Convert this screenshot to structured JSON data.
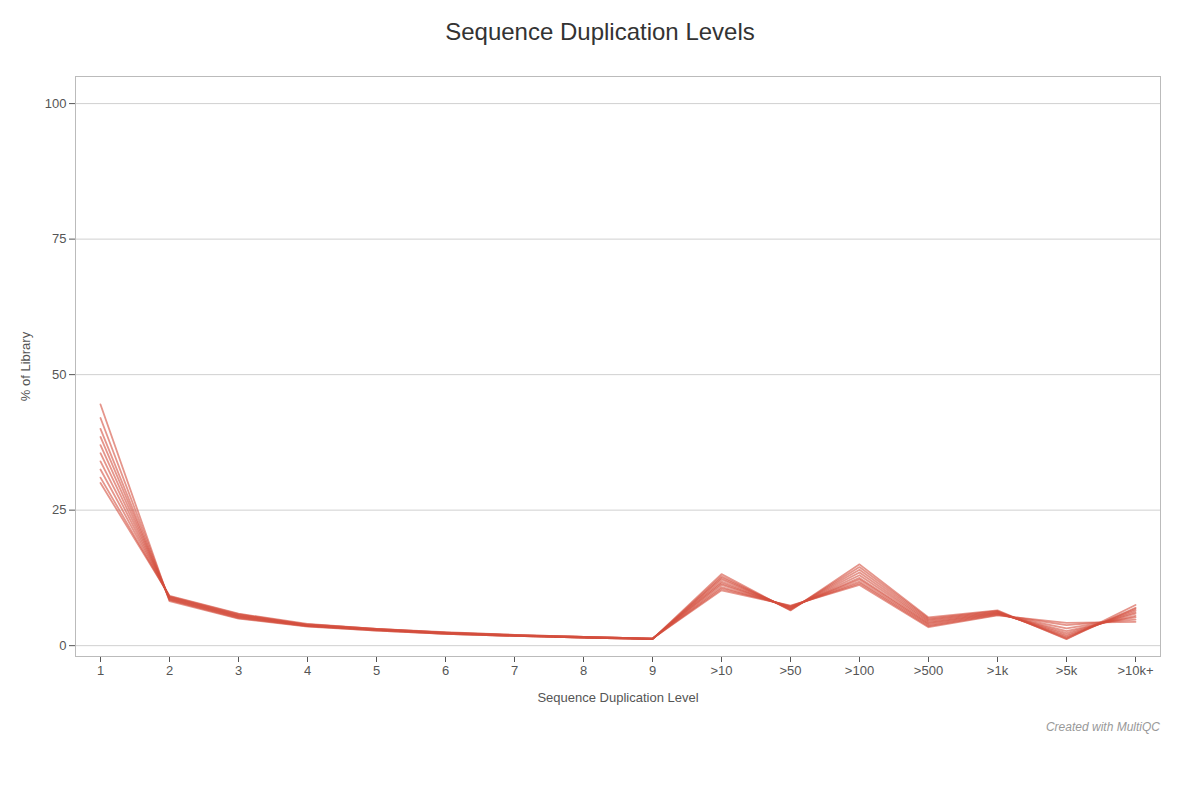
{
  "chart_data": {
    "type": "line",
    "title": "Sequence Duplication Levels",
    "xlabel": "Sequence Duplication Level",
    "ylabel": "% of Library",
    "categories": [
      "1",
      "2",
      "3",
      "4",
      "5",
      "6",
      "7",
      "8",
      "9",
      ">10",
      ">50",
      ">100",
      ">500",
      ">1k",
      ">5k",
      ">10k+"
    ],
    "series": [
      {
        "values": [
          44.5,
          8.2,
          5.0,
          3.5,
          2.8,
          2.2,
          1.8,
          1.5,
          1.2,
          13.2,
          6.5,
          15.0,
          5.2,
          6.5,
          1.2,
          7.5
        ]
      },
      {
        "values": [
          42.0,
          8.4,
          5.1,
          3.6,
          2.8,
          2.2,
          1.8,
          1.5,
          1.2,
          12.8,
          6.6,
          14.5,
          5.0,
          6.4,
          1.3,
          7.0
        ]
      },
      {
        "values": [
          40.0,
          8.5,
          5.2,
          3.6,
          2.9,
          2.2,
          1.8,
          1.5,
          1.2,
          12.5,
          6.7,
          14.0,
          4.8,
          6.3,
          1.5,
          6.8
        ]
      },
      {
        "values": [
          38.5,
          8.6,
          5.3,
          3.7,
          2.9,
          2.3,
          1.8,
          1.5,
          1.2,
          12.2,
          6.8,
          13.5,
          4.6,
          6.2,
          1.7,
          6.5
        ]
      },
      {
        "values": [
          37.0,
          8.7,
          5.4,
          3.7,
          2.9,
          2.3,
          1.9,
          1.5,
          1.3,
          11.8,
          6.9,
          13.0,
          4.4,
          6.1,
          2.0,
          6.2
        ]
      },
      {
        "values": [
          35.5,
          8.8,
          5.5,
          3.8,
          3.0,
          2.3,
          1.9,
          1.6,
          1.3,
          11.5,
          7.0,
          12.5,
          4.2,
          6.0,
          2.3,
          5.9
        ]
      },
      {
        "values": [
          34.0,
          8.9,
          5.6,
          3.8,
          3.0,
          2.4,
          1.9,
          1.6,
          1.3,
          11.2,
          7.1,
          12.2,
          4.0,
          5.9,
          2.7,
          5.5
        ]
      },
      {
        "values": [
          32.5,
          9.0,
          5.7,
          3.9,
          3.1,
          2.4,
          1.9,
          1.6,
          1.3,
          10.8,
          7.2,
          11.8,
          3.8,
          5.8,
          3.2,
          5.2
        ]
      },
      {
        "values": [
          31.0,
          9.1,
          5.8,
          3.9,
          3.1,
          2.4,
          2.0,
          1.6,
          1.3,
          10.5,
          7.3,
          11.5,
          3.6,
          5.7,
          3.8,
          4.8
        ]
      },
      {
        "values": [
          30.0,
          9.2,
          5.9,
          4.0,
          3.1,
          2.5,
          2.0,
          1.6,
          1.3,
          10.2,
          7.4,
          11.2,
          3.4,
          5.6,
          4.2,
          4.4
        ]
      }
    ],
    "color": "#d44e3e",
    "ylim": [
      -2,
      105
    ],
    "yticks": [
      0,
      25,
      50,
      75,
      100
    ],
    "grid": true,
    "annotations": [
      "Created with MultiQC"
    ]
  }
}
